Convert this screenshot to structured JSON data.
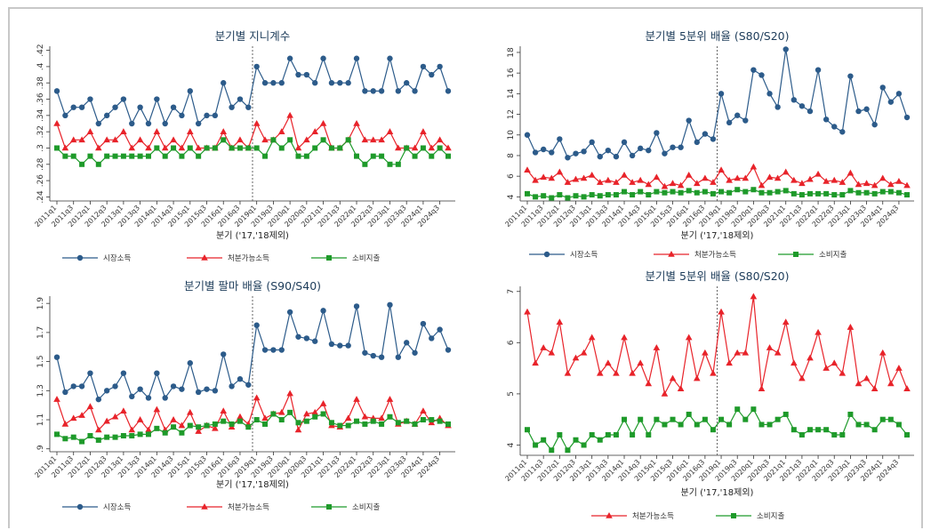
{
  "chart_data": [
    {
      "type": "line",
      "title": "분기별 지니계수",
      "x_label": "분기 ('17,'18제외)",
      "legend": "bottom",
      "grid": false,
      "x": [
        "2011q1",
        null,
        "2011q3",
        null,
        "2012q1",
        null,
        "2012q3",
        null,
        "2013q1",
        null,
        "2013q3",
        null,
        "2014q1",
        null,
        "2014q3",
        null,
        "2015q1",
        null,
        "2015q3",
        null,
        "2016q1",
        null,
        "2016q3",
        null,
        "2019q1",
        null,
        "2019q3",
        null,
        "2020q1",
        null,
        "2020q3",
        null,
        "2021q1",
        null,
        "2021q3",
        null,
        "2022q1",
        null,
        "2022q3",
        null,
        "2023q1",
        null,
        "2023q3",
        null,
        "2024q1",
        null,
        "2024q3",
        null
      ],
      "ylim": [
        0.235,
        0.425
      ],
      "yticks": [
        {
          "value": 0.24,
          "label": ".24"
        },
        {
          "value": 0.26,
          "label": ".26"
        },
        {
          "value": 0.28,
          "label": ".28"
        },
        {
          "value": 0.3,
          "label": ".3"
        },
        {
          "value": 0.32,
          "label": ".32"
        },
        {
          "value": 0.34,
          "label": ".34"
        },
        {
          "value": 0.36,
          "label": ".36"
        },
        {
          "value": 0.38,
          "label": ".38"
        },
        {
          "value": 0.4,
          "label": ".4"
        },
        {
          "value": 0.42,
          "label": ".42"
        }
      ],
      "series": [
        {
          "name": "시장소득",
          "color": "#2c5b8a",
          "marker": "circle",
          "values": [
            0.37,
            0.34,
            0.35,
            0.35,
            0.36,
            0.33,
            0.34,
            0.35,
            0.36,
            0.33,
            0.35,
            0.33,
            0.36,
            0.33,
            0.35,
            0.34,
            0.37,
            0.33,
            0.34,
            0.34,
            0.38,
            0.35,
            0.36,
            0.35,
            0.4,
            0.38,
            0.38,
            0.38,
            0.41,
            0.39,
            0.39,
            0.38,
            0.41,
            0.38,
            0.38,
            0.38,
            0.41,
            0.37,
            0.37,
            0.37,
            0.41,
            0.37,
            0.38,
            0.37,
            0.4,
            0.39,
            0.4,
            0.37
          ]
        },
        {
          "name": "처분가능소득",
          "color": "#e8232a",
          "marker": "triangle",
          "values": [
            0.33,
            0.3,
            0.31,
            0.31,
            0.32,
            0.3,
            0.31,
            0.31,
            0.32,
            0.3,
            0.31,
            0.3,
            0.32,
            0.3,
            0.31,
            0.3,
            0.32,
            0.3,
            0.3,
            0.3,
            0.32,
            0.3,
            0.31,
            0.3,
            0.33,
            0.31,
            0.31,
            0.32,
            0.34,
            0.3,
            0.31,
            0.32,
            0.33,
            0.3,
            0.3,
            0.31,
            0.33,
            0.31,
            0.31,
            0.31,
            0.32,
            0.3,
            0.3,
            0.3,
            0.32,
            0.3,
            0.31,
            0.3
          ]
        },
        {
          "name": "소비지출",
          "color": "#1e9a2a",
          "marker": "square",
          "values": [
            0.3,
            0.29,
            0.29,
            0.28,
            0.29,
            0.28,
            0.29,
            0.29,
            0.29,
            0.29,
            0.29,
            0.29,
            0.3,
            0.29,
            0.3,
            0.29,
            0.3,
            0.29,
            0.3,
            0.3,
            0.31,
            0.3,
            0.3,
            0.3,
            0.3,
            0.29,
            0.31,
            0.3,
            0.31,
            0.29,
            0.29,
            0.3,
            0.31,
            0.3,
            0.3,
            0.31,
            0.29,
            0.28,
            0.29,
            0.29,
            0.28,
            0.28,
            0.3,
            0.29,
            0.3,
            0.29,
            0.3,
            0.29
          ]
        }
      ]
    },
    {
      "type": "line",
      "title": "분기별 5분위 배율 (S80/S20)",
      "x_label": "분기 ('17,'18제외)",
      "legend": "bottom",
      "grid": false,
      "x": [
        "2011q1",
        null,
        "2011q3",
        null,
        "2012q1",
        null,
        "2012q3",
        null,
        "2013q1",
        null,
        "2013q3",
        null,
        "2014q1",
        null,
        "2014q3",
        null,
        "2015q1",
        null,
        "2015q3",
        null,
        "2016q1",
        null,
        "2016q3",
        null,
        "2019q1",
        null,
        "2019q3",
        null,
        "2020q1",
        null,
        "2020q3",
        null,
        "2021q1",
        null,
        "2021q3",
        null,
        "2022q1",
        null,
        "2022q3",
        null,
        "2023q1",
        null,
        "2023q3",
        null,
        "2024q1",
        null,
        "2024q3",
        null
      ],
      "ylim": [
        3.6,
        18.6
      ],
      "yticks": [
        4,
        6,
        8,
        10,
        12,
        14,
        16,
        18
      ],
      "series": [
        {
          "name": "시장소득",
          "color": "#2c5b8a",
          "marker": "circle",
          "values": [
            10,
            8.3,
            8.6,
            8.3,
            9.6,
            7.8,
            8.2,
            8.4,
            9.3,
            7.9,
            8.5,
            7.9,
            9.3,
            8.0,
            8.7,
            8.5,
            10.2,
            8.2,
            8.8,
            8.8,
            11.4,
            9.3,
            10.1,
            9.6,
            14,
            11.2,
            11.9,
            11.4,
            16.3,
            15.8,
            14,
            12.7,
            18.3,
            13.4,
            12.8,
            12.3,
            16.3,
            11.5,
            10.8,
            10.3,
            15.7,
            12.3,
            12.5,
            11,
            14.6,
            13.2,
            14,
            11.7
          ]
        },
        {
          "name": "처분가능소득",
          "color": "#e8232a",
          "marker": "triangle",
          "values": [
            6.6,
            5.6,
            5.9,
            5.8,
            6.4,
            5.4,
            5.7,
            5.8,
            6.1,
            5.4,
            5.6,
            5.4,
            6.1,
            5.4,
            5.6,
            5.2,
            5.9,
            5.0,
            5.3,
            5.1,
            6.1,
            5.3,
            5.8,
            5.4,
            6.6,
            5.6,
            5.8,
            5.8,
            6.9,
            5.1,
            5.9,
            5.8,
            6.4,
            5.6,
            5.3,
            5.7,
            6.2,
            5.5,
            5.6,
            5.4,
            6.3,
            5.2,
            5.3,
            5.1,
            5.8,
            5.2,
            5.5,
            5.1
          ]
        },
        {
          "name": "소비지출",
          "color": "#1e9a2a",
          "marker": "square",
          "values": [
            4.3,
            4.0,
            4.1,
            3.9,
            4.2,
            3.9,
            4.1,
            4.0,
            4.2,
            4.1,
            4.2,
            4.2,
            4.5,
            4.2,
            4.5,
            4.2,
            4.5,
            4.4,
            4.5,
            4.4,
            4.6,
            4.4,
            4.5,
            4.3,
            4.5,
            4.4,
            4.7,
            4.5,
            4.7,
            4.4,
            4.4,
            4.5,
            4.6,
            4.3,
            4.2,
            4.3,
            4.3,
            4.3,
            4.2,
            4.2,
            4.6,
            4.4,
            4.4,
            4.3,
            4.5,
            4.5,
            4.4,
            4.2
          ]
        }
      ]
    },
    {
      "type": "line",
      "title": "분기별 팔마 배율 (S90/S40)",
      "x_label": "분기 ('17,'18제외)",
      "legend": "bottom",
      "grid": false,
      "x": [
        "2011q1",
        null,
        "2011q3",
        null,
        "2012q1",
        null,
        "2012q3",
        null,
        "2013q1",
        null,
        "2013q3",
        null,
        "2014q1",
        null,
        "2014q3",
        null,
        "2015q1",
        null,
        "2015q3",
        null,
        "2016q1",
        null,
        "2016q3",
        null,
        "2019q1",
        null,
        "2019q3",
        null,
        "2020q1",
        null,
        "2020q3",
        null,
        "2021q1",
        null,
        "2021q3",
        null,
        "2022q1",
        null,
        "2022q3",
        null,
        "2023q1",
        null,
        "2023q3",
        null,
        "2024q1",
        null,
        "2024q3",
        null
      ],
      "ylim": [
        0.88,
        1.95
      ],
      "yticks": [
        {
          "value": 0.9,
          "label": ".9"
        },
        1.1,
        1.3,
        1.5,
        1.7,
        1.9
      ],
      "series": [
        {
          "name": "시장소득",
          "color": "#2c5b8a",
          "marker": "circle",
          "values": [
            1.53,
            1.29,
            1.33,
            1.33,
            1.42,
            1.24,
            1.3,
            1.33,
            1.42,
            1.26,
            1.31,
            1.25,
            1.42,
            1.25,
            1.33,
            1.31,
            1.49,
            1.29,
            1.31,
            1.3,
            1.55,
            1.33,
            1.38,
            1.34,
            1.75,
            1.58,
            1.58,
            1.58,
            1.84,
            1.67,
            1.66,
            1.64,
            1.85,
            1.62,
            1.61,
            1.61,
            1.88,
            1.56,
            1.54,
            1.53,
            1.89,
            1.53,
            1.63,
            1.56,
            1.76,
            1.66,
            1.72,
            1.58
          ]
        },
        {
          "name": "처분가능소득",
          "color": "#e8232a",
          "marker": "triangle",
          "values": [
            1.24,
            1.07,
            1.11,
            1.13,
            1.19,
            1.03,
            1.09,
            1.12,
            1.16,
            1.03,
            1.1,
            1.03,
            1.17,
            1.03,
            1.1,
            1.06,
            1.15,
            1.02,
            1.06,
            1.04,
            1.16,
            1.05,
            1.12,
            1.07,
            1.25,
            1.11,
            1.14,
            1.15,
            1.28,
            1.03,
            1.14,
            1.15,
            1.21,
            1.06,
            1.05,
            1.11,
            1.24,
            1.12,
            1.11,
            1.11,
            1.24,
            1.07,
            1.09,
            1.07,
            1.16,
            1.08,
            1.11,
            1.06
          ]
        },
        {
          "name": "소비지출",
          "color": "#1e9a2a",
          "marker": "square",
          "values": [
            1.0,
            0.97,
            0.98,
            0.95,
            0.99,
            0.96,
            0.98,
            0.98,
            0.99,
            0.99,
            1.0,
            1.0,
            1.04,
            1.01,
            1.05,
            1.01,
            1.06,
            1.05,
            1.06,
            1.07,
            1.09,
            1.07,
            1.09,
            1.05,
            1.1,
            1.07,
            1.14,
            1.1,
            1.15,
            1.08,
            1.09,
            1.12,
            1.14,
            1.08,
            1.06,
            1.06,
            1.09,
            1.07,
            1.09,
            1.07,
            1.12,
            1.08,
            1.09,
            1.07,
            1.1,
            1.1,
            1.09,
            1.07
          ]
        }
      ]
    },
    {
      "type": "line",
      "title": "분기별 5분위 배율 (S80/S20)",
      "x_label": "분기 ('17,'18제외)",
      "legend": "bottom",
      "grid": false,
      "x": [
        "2011q1",
        null,
        "2011q3",
        null,
        "2012q1",
        null,
        "2012q3",
        null,
        "2013q1",
        null,
        "2013q3",
        null,
        "2014q1",
        null,
        "2014q3",
        null,
        "2015q1",
        null,
        "2015q3",
        null,
        "2016q1",
        null,
        "2016q3",
        null,
        "2019q1",
        null,
        "2019q3",
        null,
        "2020q1",
        null,
        "2020q3",
        null,
        "2021q1",
        null,
        "2021q3",
        null,
        "2022q1",
        null,
        "2022q3",
        null,
        "2023q1",
        null,
        "2023q3",
        null,
        "2024q1",
        null,
        "2024q3",
        null
      ],
      "ylim": [
        3.8,
        7.1
      ],
      "yticks": [
        4,
        5,
        6,
        7
      ],
      "series": [
        {
          "name": "처분가능소득",
          "color": "#e8232a",
          "marker": "triangle",
          "values": [
            6.6,
            5.6,
            5.9,
            5.8,
            6.4,
            5.4,
            5.7,
            5.8,
            6.1,
            5.4,
            5.6,
            5.4,
            6.1,
            5.4,
            5.6,
            5.2,
            5.9,
            5.0,
            5.3,
            5.1,
            6.1,
            5.3,
            5.8,
            5.4,
            6.6,
            5.6,
            5.8,
            5.8,
            6.9,
            5.1,
            5.9,
            5.8,
            6.4,
            5.6,
            5.3,
            5.7,
            6.2,
            5.5,
            5.6,
            5.4,
            6.3,
            5.2,
            5.3,
            5.1,
            5.8,
            5.2,
            5.5,
            5.1
          ]
        },
        {
          "name": "소비지출",
          "color": "#1e9a2a",
          "marker": "square",
          "values": [
            4.3,
            4.0,
            4.1,
            3.9,
            4.2,
            3.9,
            4.1,
            4.0,
            4.2,
            4.1,
            4.2,
            4.2,
            4.5,
            4.2,
            4.5,
            4.2,
            4.5,
            4.4,
            4.5,
            4.4,
            4.6,
            4.4,
            4.5,
            4.3,
            4.5,
            4.4,
            4.7,
            4.5,
            4.7,
            4.4,
            4.4,
            4.5,
            4.6,
            4.3,
            4.2,
            4.3,
            4.3,
            4.3,
            4.2,
            4.2,
            4.6,
            4.4,
            4.4,
            4.3,
            4.5,
            4.5,
            4.4,
            4.2
          ]
        }
      ]
    }
  ]
}
